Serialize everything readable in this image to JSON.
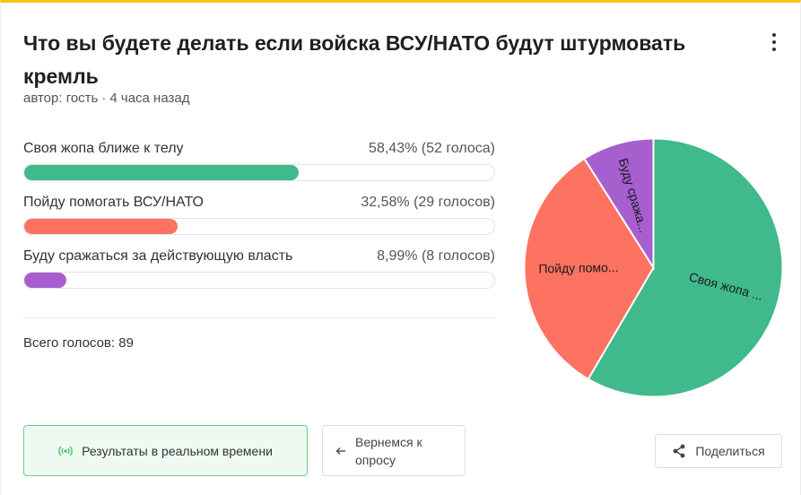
{
  "poll": {
    "title": "Что вы будете делать если войска ВСУ/НАТО будут штурмовать кремль",
    "author": "автор: гость",
    "separator": "·",
    "time": "4 часа назад",
    "options": [
      {
        "label": "Своя жопа ближе к телу",
        "result": "58,43% (52 голоса)",
        "fraction": 0.5843,
        "color": "#40b98c",
        "pie_label": "Своя жопа ..."
      },
      {
        "label": "Пойду помогать ВСУ/НАТО",
        "result": "32,58% (29 голосов)",
        "fraction": 0.3258,
        "color": "#fe7261",
        "pie_label": "Пойду помо..."
      },
      {
        "label": "Буду сражаться за действующую власть",
        "result": "8,99% (8 голосов)",
        "fraction": 0.0899,
        "color": "#a75fcf",
        "pie_label": "Буду сража..."
      }
    ],
    "total": "Всего голосов: 89"
  },
  "actions": {
    "live_label": "Результаты в реальном времени",
    "live_icon": "broadcast-icon",
    "back_label": "Вернемся к опросу",
    "back_icon": "arrow-left-icon",
    "share_label": "Поделиться",
    "share_icon": "share-icon",
    "menu_icon": "kebab-menu-icon"
  }
}
